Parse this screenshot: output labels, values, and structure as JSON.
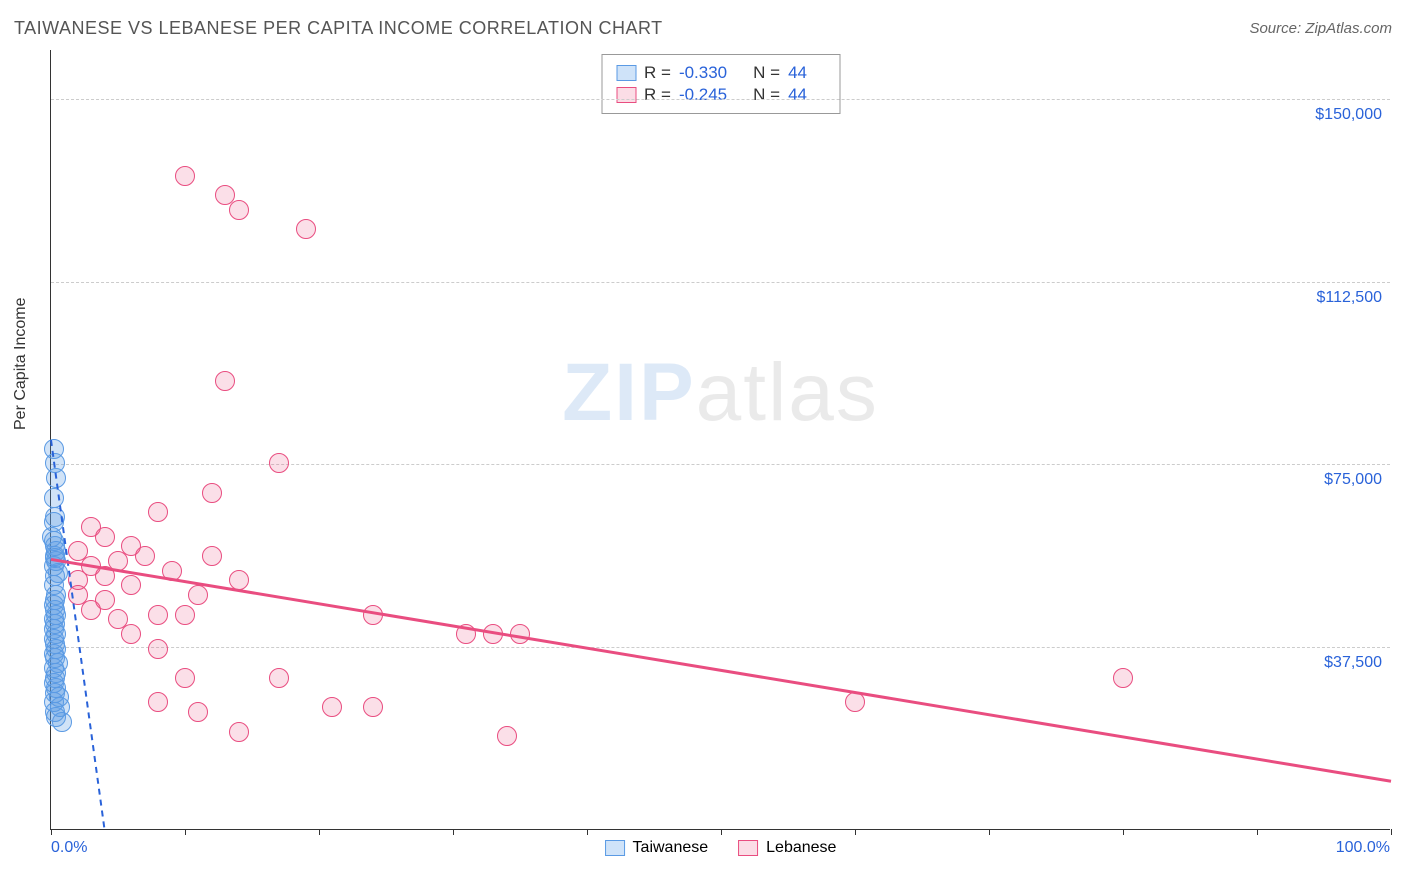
{
  "header": {
    "title": "TAIWANESE VS LEBANESE PER CAPITA INCOME CORRELATION CHART",
    "source": "Source: ZipAtlas.com"
  },
  "watermark": {
    "zip": "ZIP",
    "atlas": "atlas"
  },
  "chart": {
    "type": "scatter",
    "background_color": "#ffffff",
    "grid_color": "#cccccc",
    "axis_color": "#333333",
    "marker_radius": 10,
    "marker_border_width": 1.2,
    "xlim": [
      0,
      100
    ],
    "ylim": [
      0,
      160000
    ],
    "xaxis": {
      "min_label": "0.0%",
      "max_label": "100.0%",
      "ticks": [
        0,
        10,
        20,
        30,
        40,
        50,
        60,
        70,
        80,
        90,
        100
      ],
      "label_color": "#2962d9",
      "label_fontsize": 16
    },
    "yaxis": {
      "title": "Per Capita Income",
      "gridlines": [
        {
          "value": 37500,
          "label": "$37,500"
        },
        {
          "value": 75000,
          "label": "$75,000"
        },
        {
          "value": 112500,
          "label": "$112,500"
        },
        {
          "value": 150000,
          "label": "$150,000"
        }
      ],
      "label_color": "#2962d9",
      "label_fontsize": 16,
      "title_fontsize": 16
    },
    "series": [
      {
        "name": "Taiwanese",
        "swatch_fill": "#cfe3f9",
        "swatch_border": "#5a9ae4",
        "marker_fill": "rgba(90,154,228,0.28)",
        "marker_border": "#5a9ae4",
        "line_color": "#2962d9",
        "line_width": 2,
        "line_dash": "6,5",
        "regression": {
          "x1": 0,
          "y1": 80000,
          "x2": 4,
          "y2": 0
        },
        "stats": {
          "r_label": "R =",
          "r_value": "-0.330",
          "n_label": "N =",
          "n_value": "44"
        },
        "points": [
          [
            0.2,
            78000
          ],
          [
            0.3,
            75000
          ],
          [
            0.4,
            72000
          ],
          [
            0.2,
            68000
          ],
          [
            0.2,
            63000
          ],
          [
            0.1,
            60000
          ],
          [
            0.3,
            58000
          ],
          [
            0.3,
            56000
          ],
          [
            0.4,
            55000
          ],
          [
            0.2,
            54000
          ],
          [
            0.3,
            52000
          ],
          [
            0.2,
            50000
          ],
          [
            0.4,
            48000
          ],
          [
            0.3,
            47000
          ],
          [
            0.2,
            46000
          ],
          [
            0.3,
            45000
          ],
          [
            0.4,
            44000
          ],
          [
            0.2,
            43000
          ],
          [
            0.3,
            42000
          ],
          [
            0.2,
            41000
          ],
          [
            0.4,
            40000
          ],
          [
            0.2,
            39000
          ],
          [
            0.3,
            38000
          ],
          [
            0.4,
            37000
          ],
          [
            0.2,
            36000
          ],
          [
            0.3,
            35000
          ],
          [
            0.5,
            34000
          ],
          [
            0.2,
            33000
          ],
          [
            0.4,
            32000
          ],
          [
            0.3,
            31000
          ],
          [
            0.2,
            30000
          ],
          [
            0.4,
            29000
          ],
          [
            0.3,
            28000
          ],
          [
            0.6,
            27000
          ],
          [
            0.2,
            26000
          ],
          [
            0.7,
            25000
          ],
          [
            0.3,
            24000
          ],
          [
            0.4,
            23000
          ],
          [
            0.8,
            22000
          ],
          [
            0.3,
            55500
          ],
          [
            0.5,
            52500
          ],
          [
            0.2,
            59000
          ],
          [
            0.4,
            57000
          ],
          [
            0.3,
            64000
          ]
        ]
      },
      {
        "name": "Lebanese",
        "swatch_fill": "#fbdde6",
        "swatch_border": "#e94d80",
        "marker_fill": "rgba(233,77,128,0.18)",
        "marker_border": "#e94d80",
        "line_color": "#e94d80",
        "line_width": 3,
        "line_dash": "none",
        "regression": {
          "x1": 0,
          "y1": 55500,
          "x2": 100,
          "y2": 10000
        },
        "stats": {
          "r_label": "R =",
          "r_value": "-0.245",
          "n_label": "N =",
          "n_value": "44"
        },
        "points": [
          [
            10,
            134000
          ],
          [
            14,
            127000
          ],
          [
            13,
            130000
          ],
          [
            19,
            123000
          ],
          [
            13,
            92000
          ],
          [
            17,
            75000
          ],
          [
            12,
            69000
          ],
          [
            8,
            65000
          ],
          [
            3,
            62000
          ],
          [
            4,
            60000
          ],
          [
            6,
            58000
          ],
          [
            2,
            57000
          ],
          [
            5,
            55000
          ],
          [
            7,
            56000
          ],
          [
            3,
            54000
          ],
          [
            9,
            53000
          ],
          [
            4,
            52000
          ],
          [
            6,
            50000
          ],
          [
            11,
            48000
          ],
          [
            14,
            51000
          ],
          [
            8,
            44000
          ],
          [
            10,
            44000
          ],
          [
            24,
            44000
          ],
          [
            6,
            40000
          ],
          [
            31,
            40000
          ],
          [
            35,
            40000
          ],
          [
            33,
            40000
          ],
          [
            8,
            37000
          ],
          [
            10,
            31000
          ],
          [
            17,
            31000
          ],
          [
            8,
            26000
          ],
          [
            11,
            24000
          ],
          [
            21,
            25000
          ],
          [
            24,
            25000
          ],
          [
            14,
            20000
          ],
          [
            34,
            19000
          ],
          [
            60,
            26000
          ],
          [
            80,
            31000
          ],
          [
            3,
            45000
          ],
          [
            2,
            48000
          ],
          [
            2,
            51000
          ],
          [
            4,
            47000
          ],
          [
            5,
            43000
          ],
          [
            12,
            56000
          ]
        ]
      }
    ],
    "legend_bottom": {
      "items": [
        {
          "name": "Taiwanese",
          "fill": "#cfe3f9",
          "border": "#5a9ae4"
        },
        {
          "name": "Lebanese",
          "fill": "#fbdde6",
          "border": "#e94d80"
        }
      ]
    }
  }
}
